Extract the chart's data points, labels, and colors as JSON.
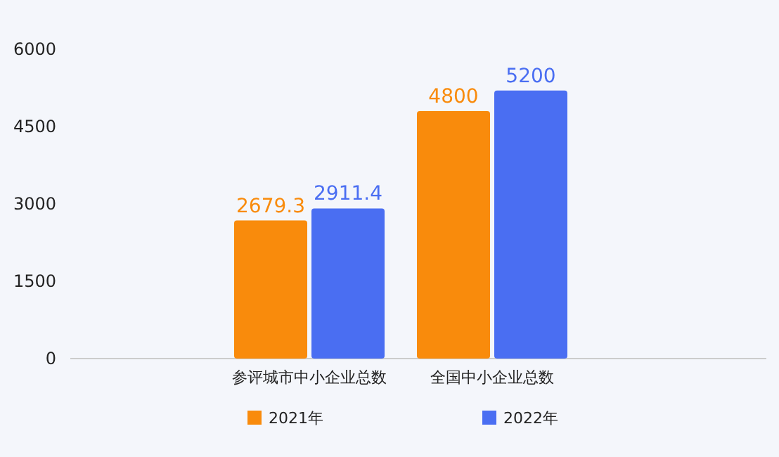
{
  "chart_data": {
    "type": "bar",
    "categories": [
      "参评城市中小企业总数",
      "全国中小企业总数"
    ],
    "series": [
      {
        "name": "2021年",
        "color": "#f98b0c",
        "values": [
          2679.3,
          4800
        ]
      },
      {
        "name": "2022年",
        "color": "#4a6ef2",
        "values": [
          2911.4,
          5200
        ]
      }
    ],
    "ylim": [
      0,
      6000
    ],
    "yticks": [
      0,
      1500,
      3000,
      4500,
      6000
    ],
    "data_labels": true,
    "legend": "bottom",
    "grid": false
  }
}
